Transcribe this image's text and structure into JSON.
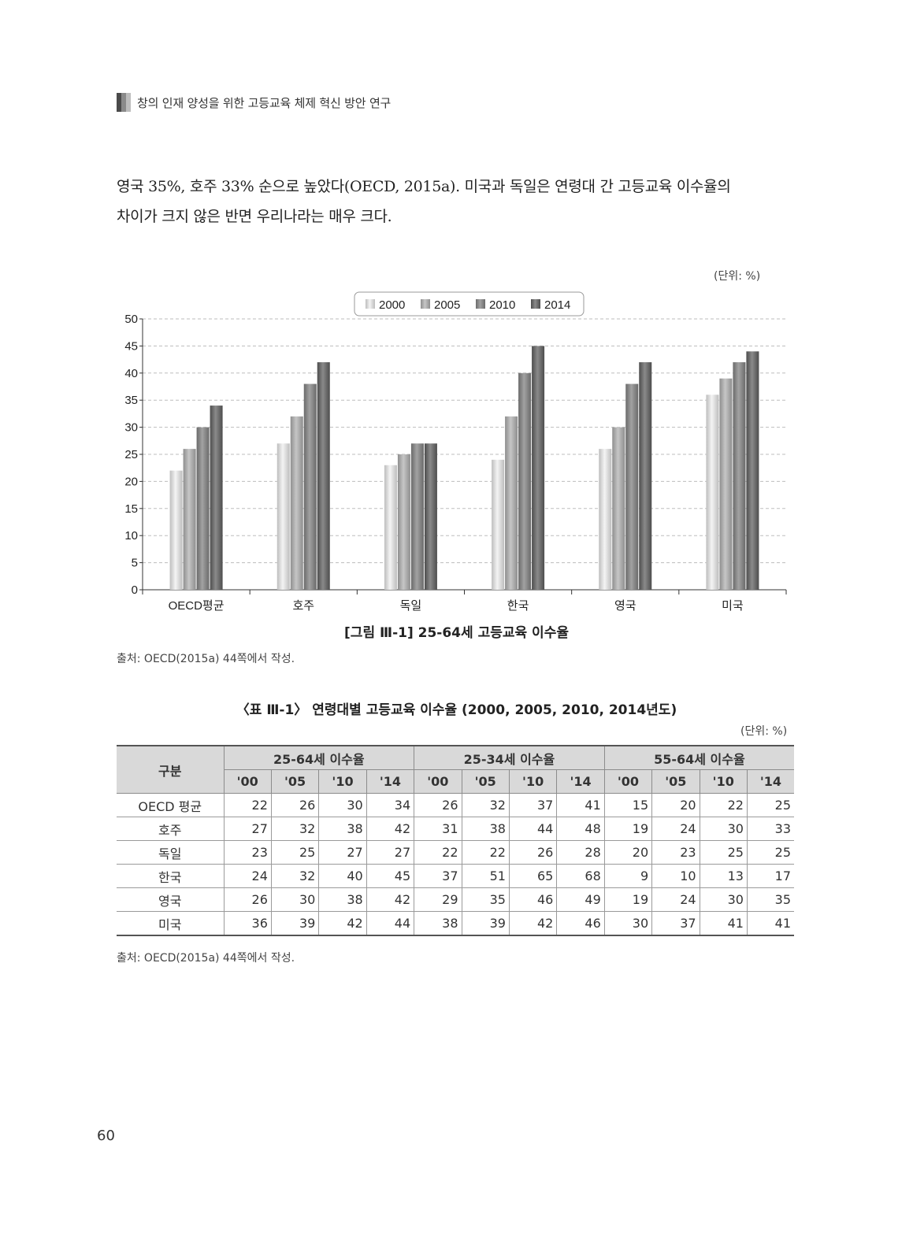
{
  "header": {
    "title": "창의 인재 양성을 위한 고등교육 체제 혁신 방안 연구"
  },
  "body_text": {
    "line1": "영국 35%, 호주 33% 순으로 높았다(OECD, 2015a). 미국과 독일은 연령대 간 고등교육 이수율의",
    "line2": "차이가 크지 않은 반면 우리나라는 매우 크다."
  },
  "figure": {
    "unit": "(단위: %)",
    "caption": "[그림 Ⅲ-1] 25-64세 고등교육 이수율",
    "source": "출처: OECD(2015a) 44쪽에서 작성."
  },
  "chart_data": {
    "type": "bar",
    "categories": [
      "OECD평균",
      "호주",
      "독일",
      "한국",
      "영국",
      "미국"
    ],
    "series": [
      {
        "name": "2000",
        "values": [
          22,
          27,
          23,
          24,
          26,
          36
        ]
      },
      {
        "name": "2005",
        "values": [
          26,
          32,
          25,
          32,
          30,
          39
        ]
      },
      {
        "name": "2010",
        "values": [
          30,
          38,
          27,
          40,
          38,
          42
        ]
      },
      {
        "name": "2014",
        "values": [
          34,
          42,
          27,
          45,
          42,
          44
        ]
      }
    ],
    "ylim": [
      0,
      50
    ],
    "yticks": [
      0,
      5,
      10,
      15,
      20,
      25,
      30,
      35,
      40,
      45,
      50
    ],
    "grid": true,
    "legend_position": "top"
  },
  "table": {
    "caption": "〈표 Ⅲ-1〉 연령대별 고등교육 이수율 (2000, 2005, 2010, 2014년도)",
    "unit": "(단위: %)",
    "corner_header": "구분",
    "group_headers": [
      "25-64세 이수율",
      "25-34세 이수율",
      "55-64세 이수율"
    ],
    "year_headers": [
      "'00",
      "'05",
      "'10",
      "'14"
    ],
    "rows": [
      {
        "label": "OECD 평균",
        "values": [
          22,
          26,
          30,
          34,
          26,
          32,
          37,
          41,
          15,
          20,
          22,
          25
        ]
      },
      {
        "label": "호주",
        "values": [
          27,
          32,
          38,
          42,
          31,
          38,
          44,
          48,
          19,
          24,
          30,
          33
        ]
      },
      {
        "label": "독일",
        "values": [
          23,
          25,
          27,
          27,
          22,
          22,
          26,
          28,
          20,
          23,
          25,
          25
        ]
      },
      {
        "label": "한국",
        "values": [
          24,
          32,
          40,
          45,
          37,
          51,
          65,
          68,
          9,
          10,
          13,
          17
        ]
      },
      {
        "label": "영국",
        "values": [
          26,
          30,
          38,
          42,
          29,
          35,
          46,
          49,
          19,
          24,
          30,
          35
        ]
      },
      {
        "label": "미국",
        "values": [
          36,
          39,
          42,
          44,
          38,
          39,
          42,
          46,
          30,
          37,
          41,
          41
        ]
      }
    ],
    "source": "출처: OECD(2015a) 44쪽에서 작성."
  },
  "page_number": "60"
}
